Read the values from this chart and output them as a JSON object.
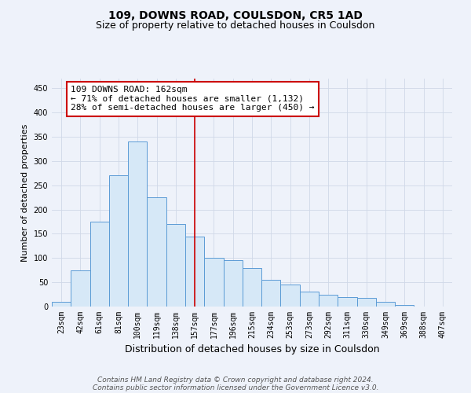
{
  "title": "109, DOWNS ROAD, COULSDON, CR5 1AD",
  "subtitle": "Size of property relative to detached houses in Coulsdon",
  "xlabel": "Distribution of detached houses by size in Coulsdon",
  "ylabel": "Number of detached properties",
  "categories": [
    "23sqm",
    "42sqm",
    "61sqm",
    "81sqm",
    "100sqm",
    "119sqm",
    "138sqm",
    "157sqm",
    "177sqm",
    "196sqm",
    "215sqm",
    "234sqm",
    "253sqm",
    "273sqm",
    "292sqm",
    "311sqm",
    "330sqm",
    "349sqm",
    "369sqm",
    "388sqm",
    "407sqm"
  ],
  "values": [
    10,
    75,
    175,
    270,
    340,
    225,
    170,
    145,
    100,
    95,
    80,
    55,
    45,
    30,
    25,
    20,
    18,
    10,
    4,
    0,
    0
  ],
  "bar_color": "#d6e8f7",
  "bar_edge_color": "#5b9bd5",
  "vline_index": 7,
  "vline_color": "#cc0000",
  "annotation_text": "109 DOWNS ROAD: 162sqm\n← 71% of detached houses are smaller (1,132)\n28% of semi-detached houses are larger (450) →",
  "annotation_box_facecolor": "white",
  "annotation_box_edgecolor": "#cc0000",
  "grid_color": "#d0d8e8",
  "background_color": "#eef2fa",
  "yticks": [
    0,
    50,
    100,
    150,
    200,
    250,
    300,
    350,
    400,
    450
  ],
  "ylim": [
    0,
    470
  ],
  "footer_line1": "Contains HM Land Registry data © Crown copyright and database right 2024.",
  "footer_line2": "Contains public sector information licensed under the Government Licence v3.0.",
  "title_fontsize": 10,
  "subtitle_fontsize": 9,
  "xlabel_fontsize": 9,
  "ylabel_fontsize": 8,
  "tick_fontsize": 7,
  "annotation_fontsize": 8,
  "footer_fontsize": 6.5
}
